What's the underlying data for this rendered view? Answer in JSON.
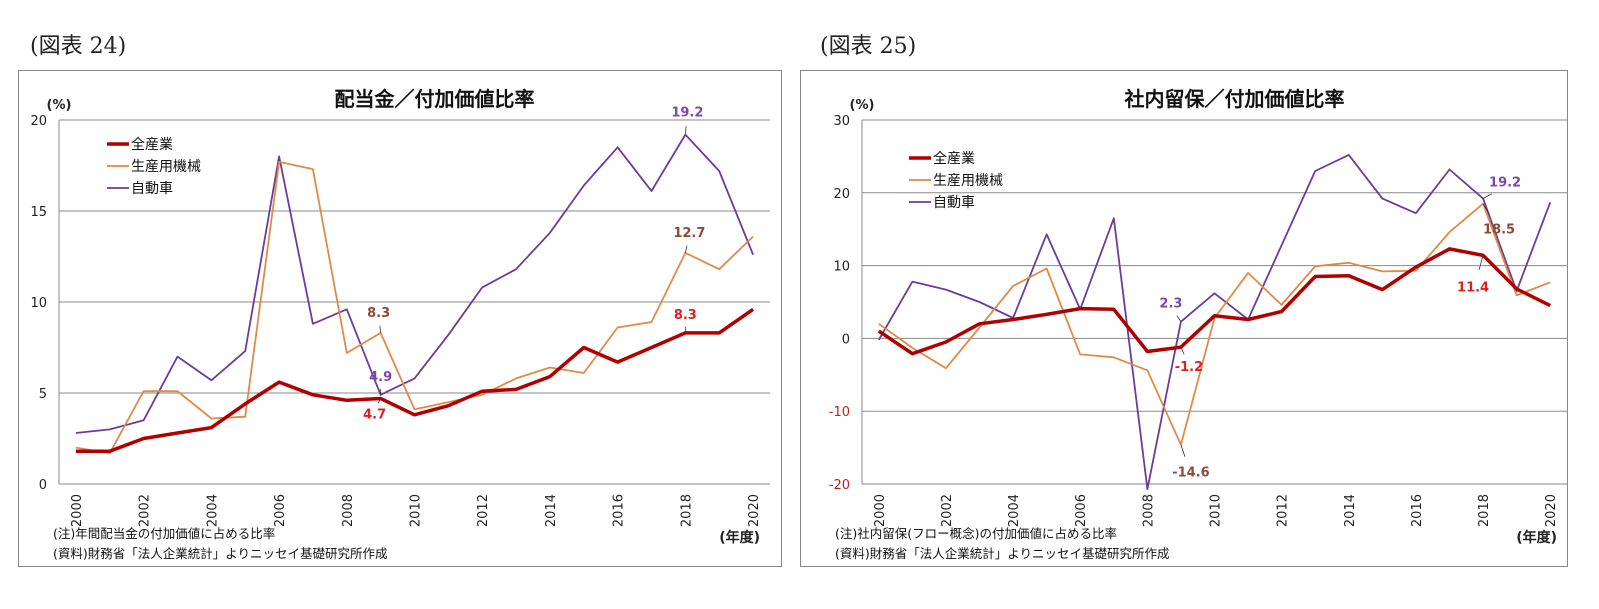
{
  "figures": [
    {
      "label": "(図表 24)",
      "note": "(注)年間配当金の付加価値に占める比率",
      "source": "(資料)財務省「法人企業統計」よりニッセイ基礎研究所作成"
    },
    {
      "label": "(図表 25)",
      "note": "(注)社内留保(フロー概念)の付加価値に占める比率",
      "source": "(資料)財務省「法人企業統計」よりニッセイ基礎研究所作成"
    }
  ],
  "colors": {
    "all": "#b00000",
    "machinery": "#e08a47",
    "auto": "#6a3d9a"
  },
  "chart_data": [
    {
      "type": "line",
      "title": "配当金／付加価値比率",
      "ylabel": "(%)",
      "xlabel": "(年度)",
      "ylim": [
        0,
        20
      ],
      "yticks": [
        0,
        5,
        10,
        15,
        20
      ],
      "grid": true,
      "legend": "top-left",
      "x": [
        2000,
        2001,
        2002,
        2003,
        2004,
        2005,
        2006,
        2007,
        2008,
        2009,
        2010,
        2011,
        2012,
        2013,
        2014,
        2015,
        2016,
        2017,
        2018,
        2019,
        2020
      ],
      "xticks": [
        "2000",
        "2002",
        "2004",
        "2006",
        "2008",
        "2010",
        "2012",
        "2014",
        "2016",
        "2018",
        "2020"
      ],
      "series": [
        {
          "name": "全産業",
          "values": [
            1.8,
            1.8,
            2.5,
            2.8,
            3.1,
            4.4,
            5.6,
            4.9,
            4.6,
            4.7,
            3.8,
            4.3,
            5.1,
            5.2,
            5.9,
            7.5,
            6.7,
            7.5,
            8.3,
            8.3,
            9.6
          ]
        },
        {
          "name": "生産用機械",
          "values": [
            2.0,
            1.7,
            5.1,
            5.1,
            3.6,
            3.7,
            17.7,
            17.3,
            7.2,
            8.3,
            4.1,
            4.5,
            4.9,
            5.8,
            6.4,
            6.1,
            8.6,
            8.9,
            12.7,
            11.8,
            13.6
          ]
        },
        {
          "name": "自動車",
          "values": [
            2.8,
            3.0,
            3.5,
            7.0,
            5.7,
            7.3,
            18.0,
            8.8,
            9.6,
            4.9,
            5.8,
            8.2,
            10.8,
            11.8,
            13.8,
            16.4,
            18.5,
            16.1,
            19.2,
            17.2,
            12.6
          ]
        }
      ],
      "annotations": [
        {
          "series": 1,
          "x": 2009,
          "text": "8.3"
        },
        {
          "series": 2,
          "x": 2009,
          "text": "4.9"
        },
        {
          "series": 0,
          "x": 2009,
          "text": "4.7"
        },
        {
          "series": 2,
          "x": 2018,
          "text": "19.2"
        },
        {
          "series": 1,
          "x": 2018,
          "text": "12.7"
        },
        {
          "series": 0,
          "x": 2018,
          "text": "8.3"
        }
      ]
    },
    {
      "type": "line",
      "title": "社内留保／付加価値比率",
      "ylabel": "(%)",
      "xlabel": "(年度)",
      "ylim": [
        -20,
        30
      ],
      "yticks": [
        -20,
        -10,
        0,
        10,
        20,
        30
      ],
      "grid": true,
      "legend": "top-left",
      "x": [
        2000,
        2001,
        2002,
        2003,
        2004,
        2005,
        2006,
        2007,
        2008,
        2009,
        2010,
        2011,
        2012,
        2013,
        2014,
        2015,
        2016,
        2017,
        2018,
        2019,
        2020
      ],
      "xticks": [
        "2000",
        "2002",
        "2004",
        "2006",
        "2008",
        "2010",
        "2012",
        "2014",
        "2016",
        "2018",
        "2020"
      ],
      "series": [
        {
          "name": "全産業",
          "values": [
            1.0,
            -2.1,
            -0.5,
            2.0,
            2.6,
            3.3,
            4.1,
            4.0,
            -1.8,
            -1.2,
            3.1,
            2.6,
            3.7,
            8.5,
            8.6,
            6.7,
            9.8,
            12.3,
            11.4,
            6.8,
            4.5
          ]
        },
        {
          "name": "生産用機械",
          "values": [
            2.0,
            -1.3,
            -4.1,
            1.5,
            7.2,
            9.6,
            -2.2,
            -2.6,
            -4.4,
            -14.6,
            2.8,
            9.0,
            4.6,
            9.9,
            10.4,
            9.2,
            9.3,
            14.6,
            18.5,
            5.9,
            7.7
          ]
        },
        {
          "name": "自動車",
          "values": [
            -0.2,
            7.8,
            6.7,
            5.0,
            2.8,
            14.3,
            4.0,
            16.5,
            -20.7,
            2.3,
            6.2,
            2.6,
            12.8,
            23.0,
            25.2,
            19.2,
            17.2,
            23.2,
            19.2,
            6.5,
            18.7
          ]
        }
      ],
      "annotations": [
        {
          "series": 2,
          "x": 2009,
          "text": "2.3"
        },
        {
          "series": 0,
          "x": 2009,
          "text": "-1.2"
        },
        {
          "series": 1,
          "x": 2009,
          "text": "-14.6"
        },
        {
          "series": 2,
          "x": 2018,
          "text": "19.2"
        },
        {
          "series": 1,
          "x": 2018,
          "text": "18.5"
        },
        {
          "series": 0,
          "x": 2018,
          "text": "11.4"
        }
      ]
    }
  ]
}
